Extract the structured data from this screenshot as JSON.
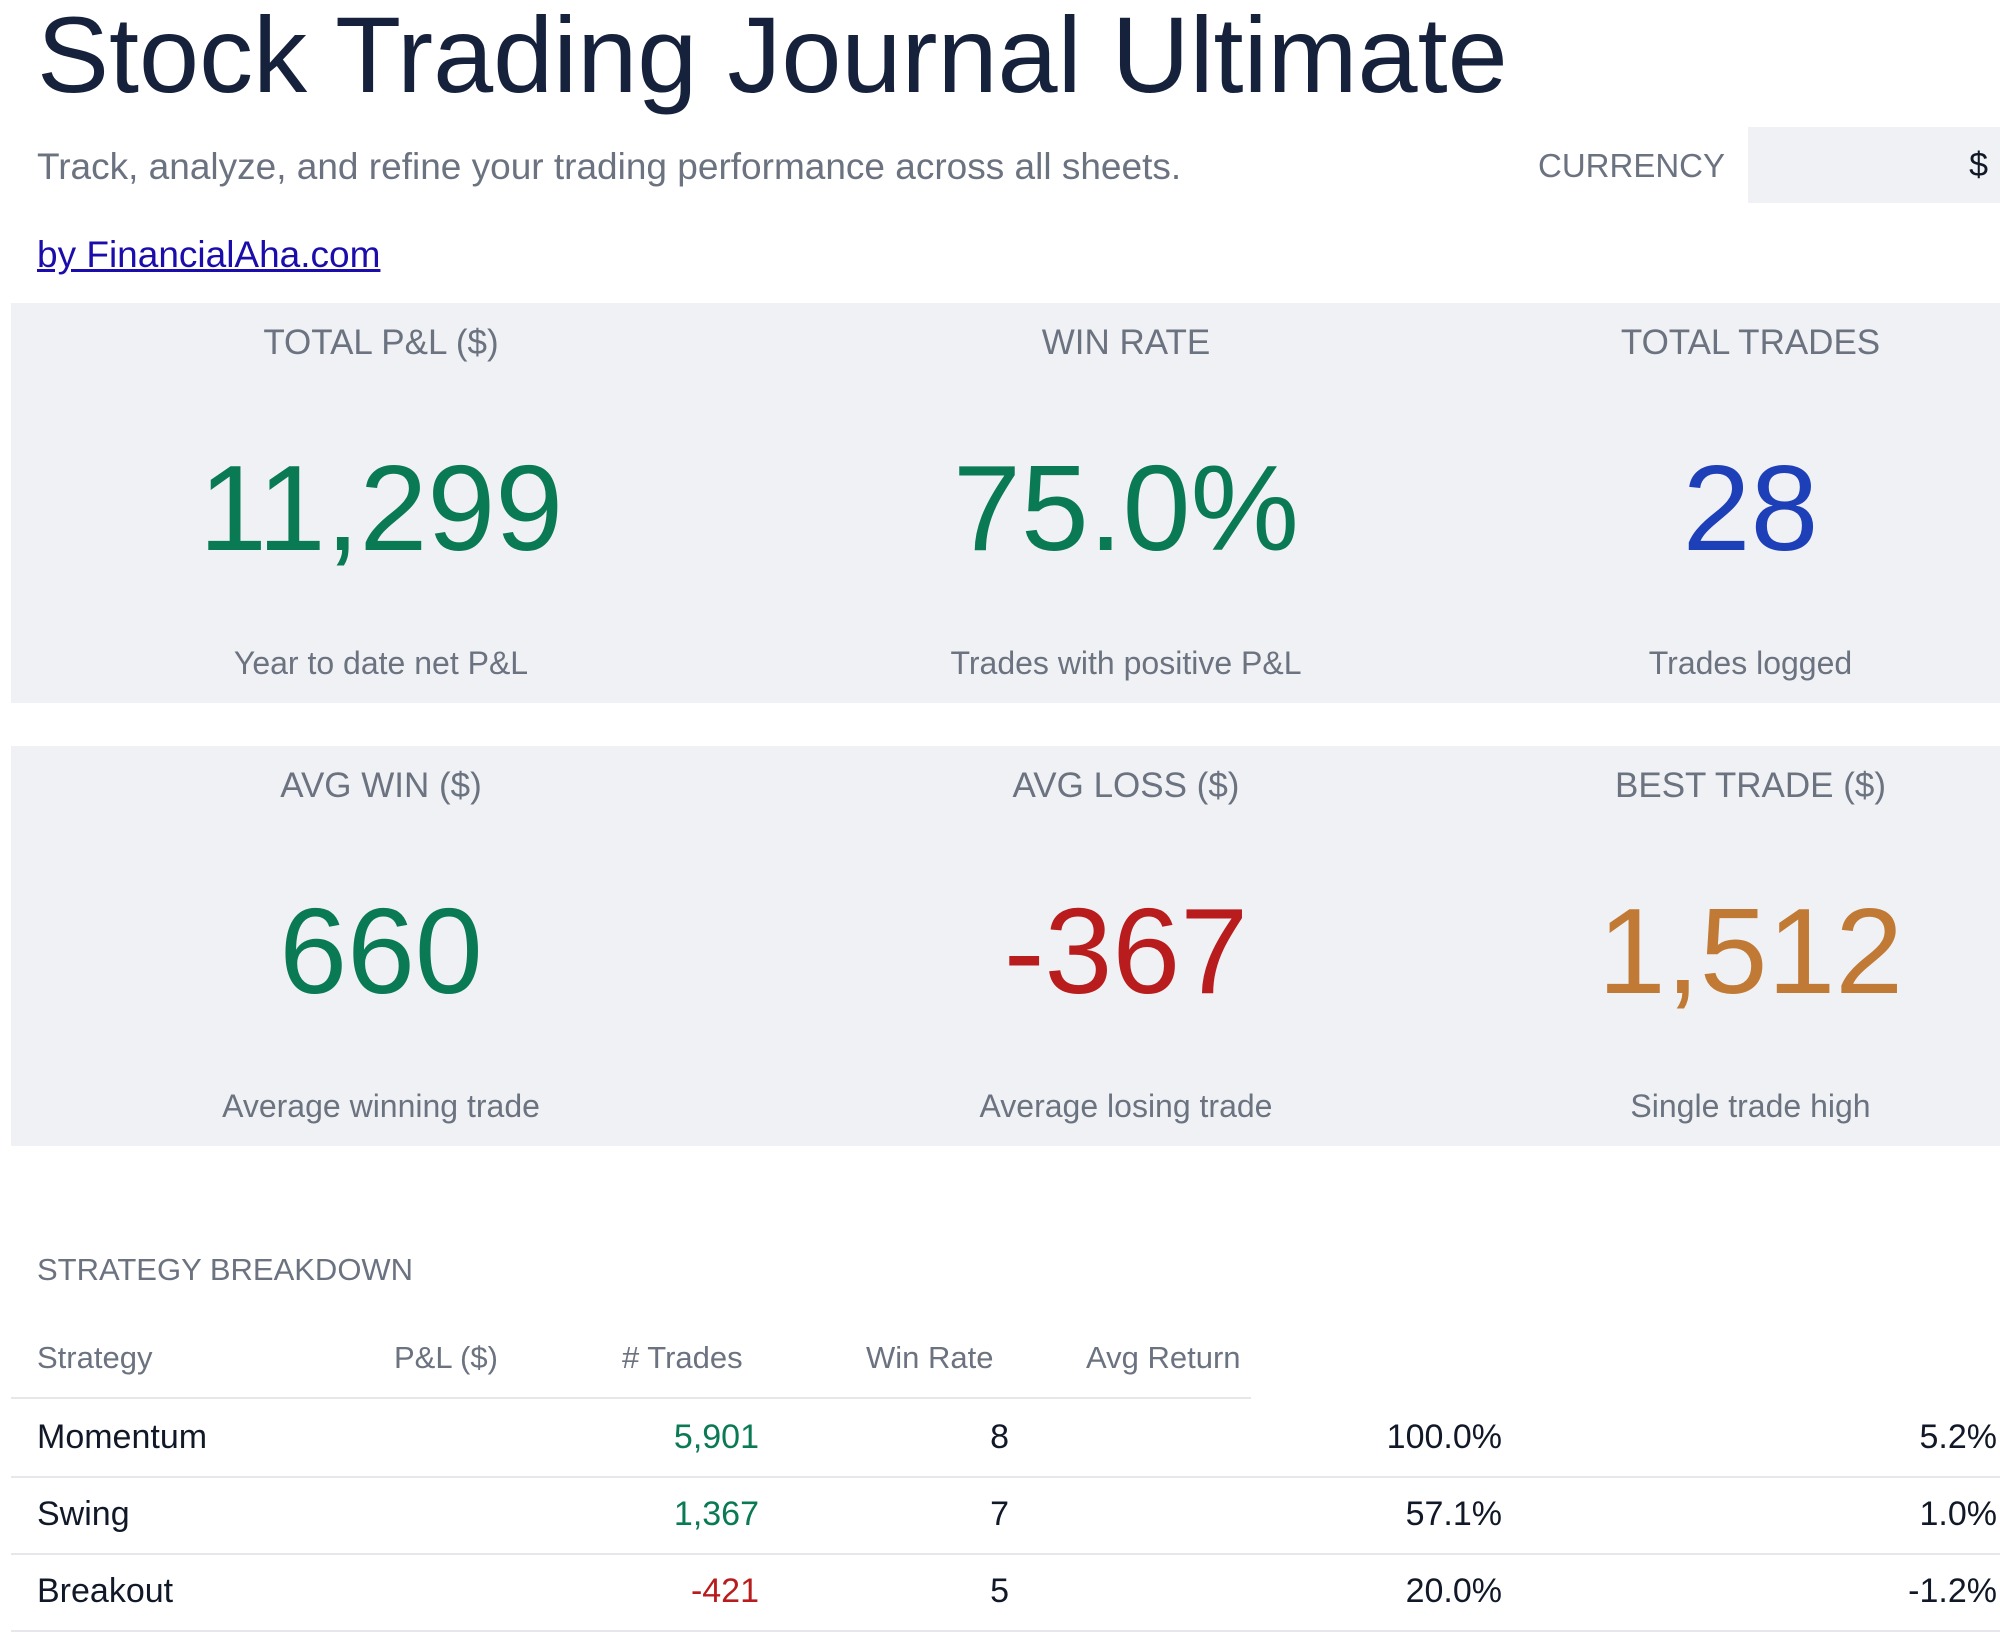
{
  "header": {
    "title": "Stock Trading Journal Ultimate",
    "subtitle": "Track, analyze, and refine your trading performance across all sheets.",
    "byline": "by FinancialAha.com",
    "currency_label": "CURRENCY",
    "currency_value": "$"
  },
  "kpis": [
    {
      "label": "TOTAL P&L ($)",
      "value": "11,299",
      "desc": "Year to date net P&L",
      "color": "#0a7a55"
    },
    {
      "label": "WIN RATE",
      "value": "75.0%",
      "desc": "Trades with positive P&L",
      "color": "#0a7a55"
    },
    {
      "label": "TOTAL TRADES",
      "value": "28",
      "desc": "Trades logged",
      "color": "#1d3fb8"
    },
    {
      "label": "AVG WIN ($)",
      "value": "660",
      "desc": "Average winning trade",
      "color": "#0a7a55"
    },
    {
      "label": "AVG LOSS ($)",
      "value": "-367",
      "desc": "Average losing trade",
      "color": "#b91c1c"
    },
    {
      "label": "BEST TRADE ($)",
      "value": "1,512",
      "desc": "Single trade high",
      "color": "#c07a35"
    }
  ],
  "strategy": {
    "title": "STRATEGY BREAKDOWN",
    "columns": [
      "Strategy",
      "P&L ($)",
      "# Trades",
      "Win Rate",
      "Avg Return"
    ],
    "rows": [
      {
        "name": "Momentum",
        "pnl": "5,901",
        "trades": "8",
        "win_rate": "100.0%",
        "avg_return": "5.2%",
        "pnl_color": "#0a7a55"
      },
      {
        "name": "Swing",
        "pnl": "1,367",
        "trades": "7",
        "win_rate": "57.1%",
        "avg_return": "1.0%",
        "pnl_color": "#0a7a55"
      },
      {
        "name": "Breakout",
        "pnl": "-421",
        "trades": "5",
        "win_rate": "20.0%",
        "avg_return": "-1.2%",
        "pnl_color": "#b91c1c"
      }
    ]
  }
}
